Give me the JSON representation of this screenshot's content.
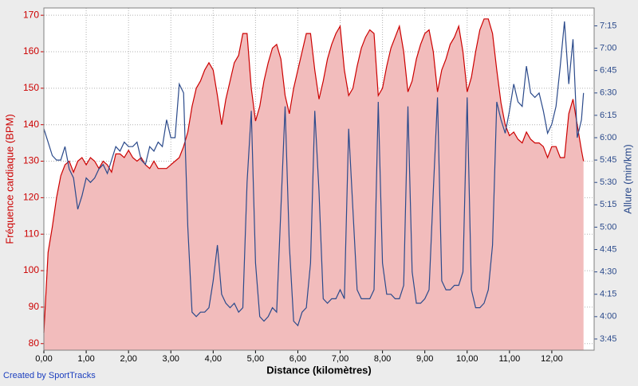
{
  "chart_data": {
    "type": "area-line",
    "xlabel": "Distance (kilomètres)",
    "ylabel": "Fréquence cardiaque (BPM)",
    "y2label": "Allure (min/km)",
    "credit": "Created by SportTracks",
    "grid": true,
    "x": [
      0,
      0.1,
      0.2,
      0.3,
      0.4,
      0.5,
      0.6,
      0.7,
      0.8,
      0.9,
      1.0,
      1.1,
      1.2,
      1.3,
      1.4,
      1.5,
      1.6,
      1.7,
      1.8,
      1.9,
      2.0,
      2.1,
      2.2,
      2.3,
      2.4,
      2.5,
      2.6,
      2.7,
      2.8,
      2.9,
      3.0,
      3.1,
      3.2,
      3.3,
      3.4,
      3.5,
      3.6,
      3.7,
      3.8,
      3.9,
      4.0,
      4.1,
      4.2,
      4.3,
      4.4,
      4.5,
      4.6,
      4.7,
      4.8,
      4.9,
      5.0,
      5.1,
      5.2,
      5.3,
      5.4,
      5.5,
      5.6,
      5.7,
      5.8,
      5.9,
      6.0,
      6.1,
      6.2,
      6.3,
      6.4,
      6.5,
      6.6,
      6.7,
      6.8,
      6.9,
      7.0,
      7.1,
      7.2,
      7.3,
      7.4,
      7.5,
      7.6,
      7.7,
      7.8,
      7.9,
      8.0,
      8.1,
      8.2,
      8.3,
      8.4,
      8.5,
      8.6,
      8.7,
      8.8,
      8.9,
      9.0,
      9.1,
      9.2,
      9.3,
      9.4,
      9.5,
      9.6,
      9.7,
      9.8,
      9.9,
      10.0,
      10.1,
      10.2,
      10.3,
      10.4,
      10.5,
      10.6,
      10.7,
      10.8,
      10.9,
      11.0,
      11.1,
      11.2,
      11.3,
      11.4,
      11.5,
      11.6,
      11.7,
      11.8,
      11.9,
      12.0,
      12.1,
      12.2,
      12.3,
      12.4,
      12.5,
      12.6,
      12.7,
      12.75
    ],
    "series": [
      {
        "color": "#cc0000",
        "fill": "#f2bcbc",
        "axis": "y",
        "values": [
          83,
          105,
          112,
          120,
          126,
          129,
          130,
          127,
          130,
          131,
          129,
          131,
          130,
          128,
          130,
          129,
          127,
          132,
          132,
          131,
          133,
          131,
          130,
          131,
          129,
          128,
          130,
          128,
          128,
          128,
          129,
          130,
          131,
          134,
          138,
          145,
          150,
          152,
          155,
          157,
          155,
          148,
          140,
          147,
          152,
          157,
          159,
          165,
          165,
          150,
          141,
          145,
          152,
          157,
          161,
          162,
          158,
          148,
          143,
          150,
          155,
          160,
          165,
          165,
          155,
          147,
          152,
          158,
          162,
          165,
          167,
          155,
          148,
          150,
          156,
          161,
          164,
          166,
          165,
          148,
          150,
          156,
          161,
          164,
          167,
          160,
          149,
          152,
          158,
          162,
          165,
          166,
          160,
          149,
          155,
          158,
          162,
          164,
          167,
          160,
          149,
          153,
          160,
          166,
          169,
          169,
          165,
          155,
          146,
          140,
          137,
          138,
          136,
          135,
          138,
          136,
          135,
          135,
          134,
          131,
          134,
          134,
          131,
          131,
          143,
          147,
          140,
          133,
          130
        ]
      },
      {
        "color": "#2b4a8b",
        "axis": "y2",
        "values": [
          6.1,
          5.95,
          5.8,
          5.75,
          5.75,
          5.9,
          5.65,
          5.55,
          5.2,
          5.35,
          5.55,
          5.5,
          5.55,
          5.65,
          5.7,
          5.6,
          5.75,
          5.9,
          5.85,
          5.95,
          5.9,
          5.9,
          5.95,
          5.75,
          5.7,
          5.9,
          5.85,
          5.95,
          5.9,
          6.2,
          6.0,
          6.0,
          6.6,
          6.5,
          5.0,
          4.05,
          4.0,
          4.05,
          4.05,
          4.1,
          4.4,
          4.8,
          4.25,
          4.15,
          4.1,
          4.15,
          4.05,
          4.1,
          5.5,
          6.3,
          4.6,
          4.0,
          3.95,
          4.0,
          4.1,
          4.05,
          5.2,
          6.35,
          4.8,
          3.95,
          3.9,
          4.05,
          4.1,
          4.6,
          6.3,
          5.4,
          4.2,
          4.15,
          4.2,
          4.2,
          4.3,
          4.2,
          6.1,
          5.2,
          4.3,
          4.2,
          4.2,
          4.2,
          4.3,
          6.4,
          4.6,
          4.25,
          4.25,
          4.2,
          4.2,
          4.35,
          6.35,
          4.5,
          4.15,
          4.15,
          4.2,
          4.3,
          5.4,
          6.45,
          4.4,
          4.3,
          4.3,
          4.35,
          4.35,
          4.5,
          6.45,
          4.3,
          4.1,
          4.1,
          4.15,
          4.3,
          4.8,
          6.4,
          6.2,
          6.05,
          6.3,
          6.6,
          6.4,
          6.35,
          6.8,
          6.5,
          6.45,
          6.5,
          6.3,
          6.05,
          6.15,
          6.35,
          6.8,
          7.3,
          6.6,
          7.1,
          6.0,
          6.2,
          6.5
        ]
      }
    ],
    "xlim": [
      0,
      13
    ],
    "xticks": [
      {
        "value": 0,
        "label": "0,00"
      },
      {
        "value": 1,
        "label": "1,00"
      },
      {
        "value": 2,
        "label": "2,00"
      },
      {
        "value": 3,
        "label": "3,00"
      },
      {
        "value": 4,
        "label": "4,00"
      },
      {
        "value": 5,
        "label": "5,00"
      },
      {
        "value": 6,
        "label": "6,00"
      },
      {
        "value": 7,
        "label": "7,00"
      },
      {
        "value": 8,
        "label": "8,00"
      },
      {
        "value": 9,
        "label": "9,00"
      },
      {
        "value": 10,
        "label": "10,00"
      },
      {
        "value": 11,
        "label": "11,00"
      },
      {
        "value": 12,
        "label": "12,00"
      }
    ],
    "ylim": [
      78.2,
      172
    ],
    "yticks": [
      80,
      90,
      100,
      110,
      120,
      130,
      140,
      150,
      160,
      170
    ],
    "y2lim": [
      3.625,
      7.45
    ],
    "y2ticks": [
      {
        "value": 3.75,
        "label": "3:45"
      },
      {
        "value": 4.0,
        "label": "4:00"
      },
      {
        "value": 4.25,
        "label": "4:15"
      },
      {
        "value": 4.5,
        "label": "4:30"
      },
      {
        "value": 4.75,
        "label": "4:45"
      },
      {
        "value": 5.0,
        "label": "5:00"
      },
      {
        "value": 5.25,
        "label": "5:15"
      },
      {
        "value": 5.5,
        "label": "5:30"
      },
      {
        "value": 5.75,
        "label": "5:45"
      },
      {
        "value": 6.0,
        "label": "6:00"
      },
      {
        "value": 6.25,
        "label": "6:15"
      },
      {
        "value": 6.5,
        "label": "6:30"
      },
      {
        "value": 6.75,
        "label": "6:45"
      },
      {
        "value": 7.0,
        "label": "7:00"
      },
      {
        "value": 7.25,
        "label": "7:15"
      }
    ]
  }
}
